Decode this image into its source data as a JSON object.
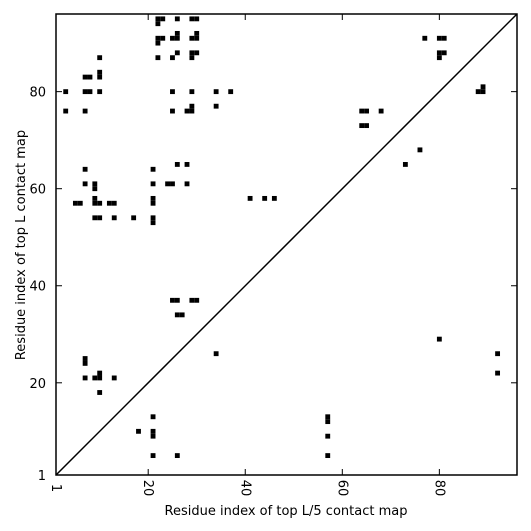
{
  "chart_data": {
    "type": "heatmap",
    "title": "",
    "xlabel": "Residue index of top L/5 contact map",
    "ylabel": "Residue index of top L contact map",
    "xlim": [
      1,
      96
    ],
    "ylim": [
      1,
      96
    ],
    "x_ticks": [
      1,
      20,
      40,
      60,
      80
    ],
    "y_ticks": [
      1,
      20,
      40,
      60,
      80
    ],
    "cell_color": "#000000",
    "grid": false,
    "diagonal": true,
    "upper_contacts": [
      [
        22,
        95
      ],
      [
        22,
        94
      ],
      [
        23,
        95
      ],
      [
        26,
        95
      ],
      [
        29,
        95
      ],
      [
        30,
        95
      ],
      [
        22,
        91
      ],
      [
        22,
        90
      ],
      [
        23,
        91
      ],
      [
        25,
        91
      ],
      [
        26,
        91
      ],
      [
        26,
        92
      ],
      [
        29,
        91
      ],
      [
        30,
        91
      ],
      [
        30,
        92
      ],
      [
        22,
        87
      ],
      [
        25,
        87
      ],
      [
        26,
        88
      ],
      [
        29,
        87
      ],
      [
        29,
        88
      ],
      [
        30,
        88
      ],
      [
        10,
        87
      ],
      [
        7,
        83
      ],
      [
        8,
        83
      ],
      [
        10,
        83
      ],
      [
        10,
        84
      ],
      [
        3,
        80
      ],
      [
        7,
        80
      ],
      [
        8,
        80
      ],
      [
        10,
        80
      ],
      [
        25,
        80
      ],
      [
        29,
        80
      ],
      [
        34,
        80
      ],
      [
        37,
        80
      ],
      [
        3,
        76
      ],
      [
        7,
        76
      ],
      [
        25,
        76
      ],
      [
        28,
        76
      ],
      [
        29,
        76
      ],
      [
        29,
        77
      ],
      [
        34,
        77
      ],
      [
        7,
        64
      ],
      [
        21,
        64
      ],
      [
        26,
        65
      ],
      [
        28,
        65
      ],
      [
        7,
        61
      ],
      [
        9,
        61
      ],
      [
        9,
        60
      ],
      [
        21,
        61
      ],
      [
        24,
        61
      ],
      [
        25,
        61
      ],
      [
        28,
        61
      ],
      [
        21,
        58
      ],
      [
        21,
        57
      ],
      [
        41,
        58
      ],
      [
        44,
        58
      ],
      [
        46,
        58
      ],
      [
        5,
        57
      ],
      [
        6,
        57
      ],
      [
        9,
        58
      ],
      [
        9,
        57
      ],
      [
        10,
        57
      ],
      [
        12,
        57
      ],
      [
        13,
        57
      ],
      [
        9,
        54
      ],
      [
        10,
        54
      ],
      [
        13,
        54
      ],
      [
        17,
        54
      ],
      [
        21,
        54
      ],
      [
        21,
        53
      ],
      [
        25,
        37
      ],
      [
        26,
        37
      ],
      [
        29,
        37
      ],
      [
        30,
        37
      ],
      [
        26,
        34
      ],
      [
        27,
        34
      ],
      [
        64,
        76
      ],
      [
        65,
        76
      ],
      [
        68,
        76
      ],
      [
        64,
        73
      ],
      [
        65,
        73
      ],
      [
        73,
        65
      ],
      [
        76,
        68
      ],
      [
        77,
        91
      ],
      [
        80,
        91
      ],
      [
        81,
        91
      ],
      [
        80,
        88
      ],
      [
        81,
        88
      ],
      [
        80,
        87
      ],
      [
        88,
        80
      ],
      [
        89,
        80
      ],
      [
        89,
        81
      ]
    ],
    "lower_contacts": [
      [
        7,
        24
      ],
      [
        7,
        25
      ],
      [
        7,
        21
      ],
      [
        9,
        21
      ],
      [
        10,
        21
      ],
      [
        10,
        22
      ],
      [
        13,
        21
      ],
      [
        10,
        18
      ],
      [
        34,
        26
      ],
      [
        80,
        29
      ],
      [
        92,
        26
      ],
      [
        92,
        22
      ],
      [
        21,
        13
      ],
      [
        18,
        10
      ],
      [
        21,
        10
      ],
      [
        21,
        9
      ],
      [
        21,
        5
      ],
      [
        26,
        5
      ],
      [
        57,
        13
      ],
      [
        57,
        12
      ],
      [
        57,
        9
      ],
      [
        57,
        5
      ]
    ]
  }
}
